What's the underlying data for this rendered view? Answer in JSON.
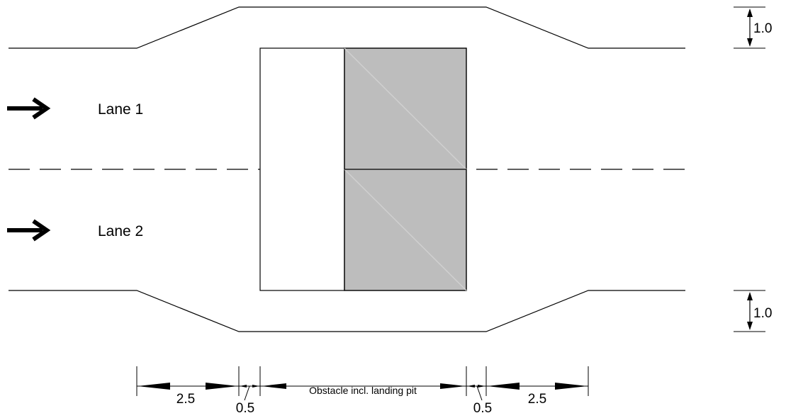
{
  "lanes": [
    {
      "label": "Lane 1"
    },
    {
      "label": "Lane 2"
    }
  ],
  "dimensions": {
    "top_offset": "1.0",
    "bottom_offset": "1.0",
    "left_taper": "2.5",
    "left_gap": "0.5",
    "obstacle": "Obstacle incl. landing pit",
    "right_gap": "0.5",
    "right_taper": "2.5"
  },
  "icons": [
    "arrow-right-icon",
    "double-arrow-icon"
  ],
  "colors": {
    "line": "#000000",
    "obstacle_fill": "#bdbdbd",
    "obstacle_diagonal": "#d0d0d0"
  }
}
